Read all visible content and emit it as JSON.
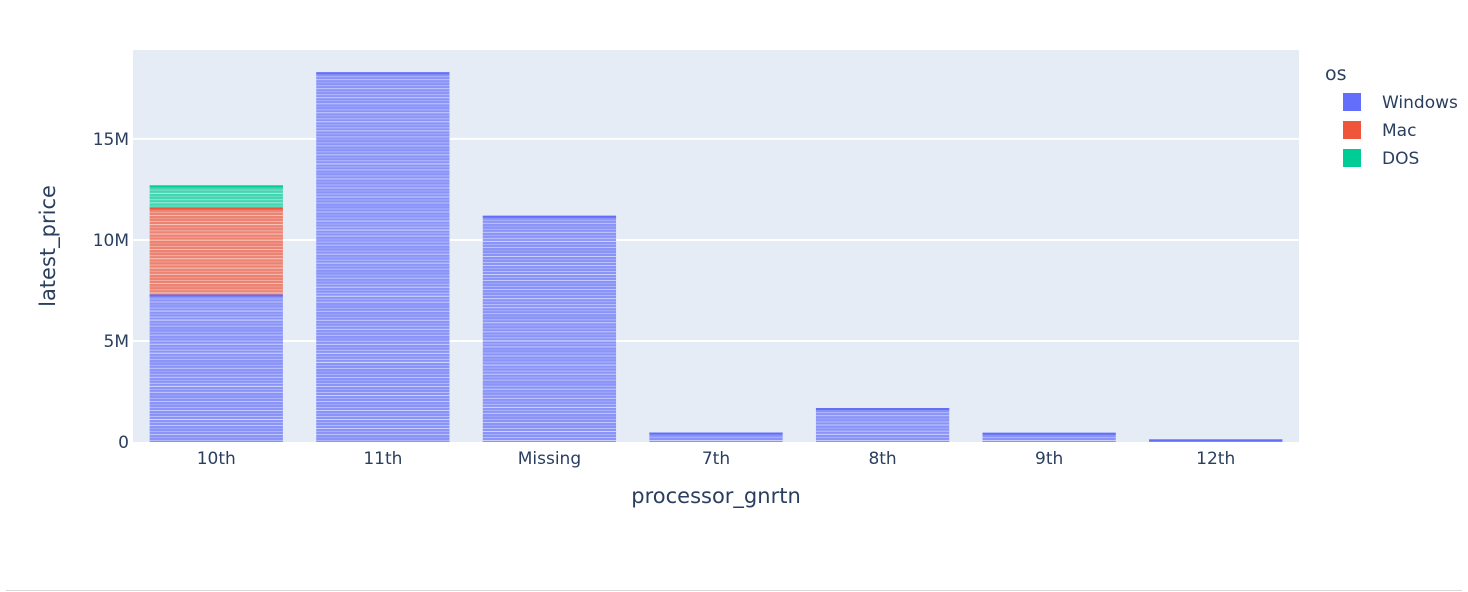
{
  "chart_data": {
    "type": "bar",
    "barmode": "stack",
    "xlabel": "processor_gnrtn",
    "ylabel": "latest_price",
    "categories": [
      "10th",
      "11th",
      "Missing",
      "7th",
      "8th",
      "9th",
      "12th"
    ],
    "y_ticks": [
      0,
      5000000,
      10000000,
      15000000
    ],
    "y_tick_labels": [
      "0",
      "5M",
      "10M",
      "15M"
    ],
    "ylim": [
      0,
      19400000
    ],
    "grid": true,
    "legend": {
      "title": "os",
      "placement": "top-right outside"
    },
    "series": [
      {
        "name": "Windows",
        "color": "#636efa",
        "values": [
          7300000,
          18300000,
          11200000,
          470000,
          1680000,
          460000,
          130000
        ]
      },
      {
        "name": "Mac",
        "color": "#ef553b",
        "values": [
          4300000,
          0,
          0,
          0,
          0,
          0,
          0
        ]
      },
      {
        "name": "DOS",
        "color": "#00cc96",
        "values": [
          1100000,
          0,
          0,
          0,
          0,
          0,
          0
        ]
      }
    ]
  }
}
